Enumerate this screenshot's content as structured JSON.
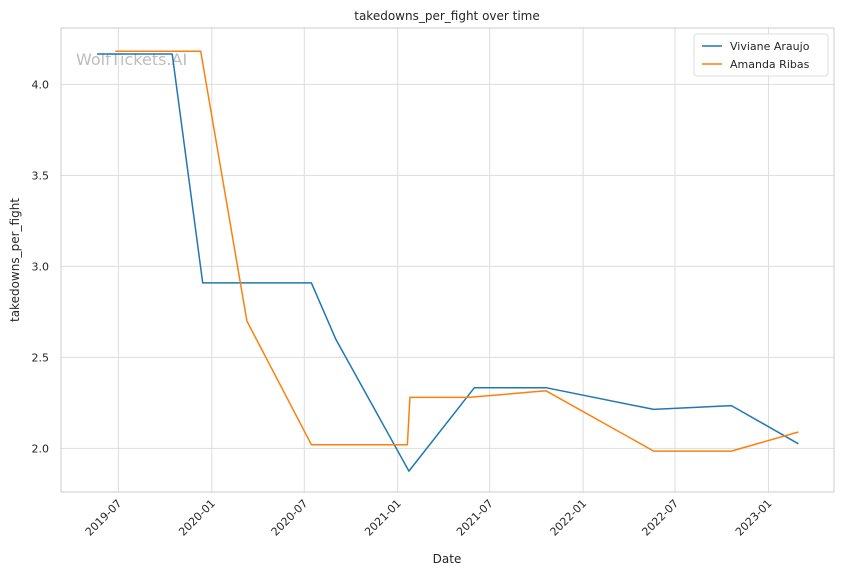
{
  "chart_data": {
    "type": "line",
    "title": "takedowns_per_fight over time",
    "xlabel": "Date",
    "ylabel": "takedowns_per_fight",
    "watermark": "WolfTickets.AI",
    "x_ticks": [
      "2019-07",
      "2020-01",
      "2020-07",
      "2021-01",
      "2021-07",
      "2022-01",
      "2022-07",
      "2023-01"
    ],
    "y_ticks": [
      "2.0",
      "2.5",
      "3.0",
      "3.5",
      "4.0"
    ],
    "xlim": [
      "2019-03-10",
      "2023-05-10"
    ],
    "ylim": [
      1.76,
      4.31
    ],
    "grid": true,
    "legend_position": "top-right",
    "series": [
      {
        "name": "Viviane Araujo",
        "color": "#1f77b4",
        "points": [
          [
            "2019-05-20",
            4.167
          ],
          [
            "2019-10-15",
            4.167
          ],
          [
            "2019-12-14",
            2.909
          ],
          [
            "2020-07-15",
            2.909
          ],
          [
            "2020-09-01",
            2.6
          ],
          [
            "2021-01-23",
            1.875
          ],
          [
            "2021-06-01",
            2.333
          ],
          [
            "2021-10-20",
            2.333
          ],
          [
            "2022-05-20",
            2.214
          ],
          [
            "2022-10-20",
            2.235
          ],
          [
            "2023-03-01",
            2.025
          ]
        ]
      },
      {
        "name": "Amanda Ribas",
        "color": "#ff7f0e",
        "points": [
          [
            "2019-06-25",
            4.182
          ],
          [
            "2019-12-10",
            4.182
          ],
          [
            "2020-03-10",
            2.7
          ],
          [
            "2020-07-15",
            2.02
          ],
          [
            "2021-01-20",
            2.02
          ],
          [
            "2021-01-25",
            2.28
          ],
          [
            "2021-05-20",
            2.28
          ],
          [
            "2021-10-20",
            2.316
          ],
          [
            "2022-05-20",
            1.985
          ],
          [
            "2022-10-20",
            1.985
          ],
          [
            "2023-03-01",
            2.09
          ]
        ]
      }
    ]
  }
}
